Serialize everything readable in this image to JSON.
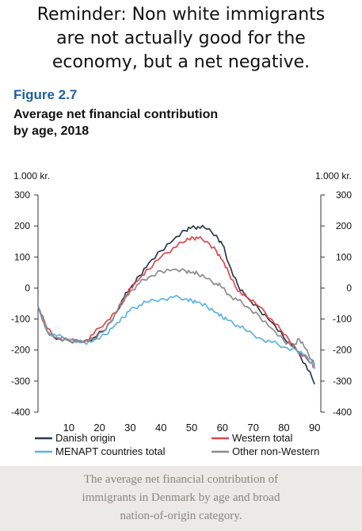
{
  "post": {
    "caption_line1": "Reminder: Non white immigrants",
    "caption_line2": "are not actually good for the",
    "caption_line3": "economy, but a net negative."
  },
  "figure": {
    "label": "Figure 2.7",
    "title_line1": "Average net financial contribution",
    "title_line2": "by age, 2018"
  },
  "footer": {
    "line1": "The average net financial contribution of",
    "line2": "immigrants in Denmark by age and broad",
    "line3": "nation-of-origin category."
  },
  "chart_data": {
    "type": "line",
    "y_unit_left": "1.000 kr.",
    "y_unit_right": "1.000 kr.",
    "ylim": [
      -400,
      300
    ],
    "xlim": [
      0,
      92
    ],
    "yticks": [
      300,
      200,
      100,
      0,
      -100,
      -200,
      -300,
      -400
    ],
    "ytick_labels": [
      "300",
      "200",
      "100",
      "0",
      "-100",
      "-200",
      "-300",
      "-400"
    ],
    "xticks": [
      10,
      20,
      30,
      40,
      50,
      60,
      70,
      80,
      90
    ],
    "xtick_labels": [
      "10",
      "20",
      "30",
      "40",
      "50",
      "60",
      "70",
      "80",
      "90"
    ],
    "grid": false,
    "legend_position": "bottom",
    "series": [
      {
        "name": "Danish origin",
        "color": "#2b3a4a",
        "points": [
          [
            0,
            -60
          ],
          [
            3,
            -140
          ],
          [
            6,
            -165
          ],
          [
            10,
            -170
          ],
          [
            15,
            -175
          ],
          [
            18,
            -160
          ],
          [
            22,
            -135
          ],
          [
            25,
            -85
          ],
          [
            28,
            -30
          ],
          [
            30,
            0
          ],
          [
            33,
            40
          ],
          [
            36,
            80
          ],
          [
            40,
            120
          ],
          [
            44,
            155
          ],
          [
            48,
            185
          ],
          [
            50,
            195
          ],
          [
            52,
            198
          ],
          [
            55,
            190
          ],
          [
            58,
            170
          ],
          [
            60,
            140
          ],
          [
            62,
            80
          ],
          [
            65,
            10
          ],
          [
            68,
            -30
          ],
          [
            72,
            -70
          ],
          [
            76,
            -110
          ],
          [
            80,
            -160
          ],
          [
            84,
            -200
          ],
          [
            87,
            -245
          ],
          [
            90,
            -310
          ]
        ]
      },
      {
        "name": "Western total",
        "color": "#e0484b",
        "points": [
          [
            0,
            -60
          ],
          [
            3,
            -130
          ],
          [
            6,
            -160
          ],
          [
            10,
            -170
          ],
          [
            15,
            -170
          ],
          [
            18,
            -150
          ],
          [
            22,
            -110
          ],
          [
            25,
            -80
          ],
          [
            28,
            -40
          ],
          [
            30,
            0
          ],
          [
            33,
            30
          ],
          [
            36,
            60
          ],
          [
            40,
            100
          ],
          [
            44,
            130
          ],
          [
            48,
            150
          ],
          [
            50,
            165
          ],
          [
            52,
            160
          ],
          [
            55,
            150
          ],
          [
            58,
            120
          ],
          [
            60,
            90
          ],
          [
            62,
            50
          ],
          [
            65,
            -10
          ],
          [
            68,
            -30
          ],
          [
            72,
            -60
          ],
          [
            76,
            -100
          ],
          [
            80,
            -150
          ],
          [
            83,
            -180
          ],
          [
            86,
            -220
          ],
          [
            89,
            -240
          ],
          [
            90,
            -260
          ]
        ]
      },
      {
        "name": "MENAPT countries total",
        "color": "#5ab4e2",
        "points": [
          [
            0,
            -60
          ],
          [
            3,
            -140
          ],
          [
            6,
            -155
          ],
          [
            10,
            -165
          ],
          [
            15,
            -175
          ],
          [
            18,
            -170
          ],
          [
            22,
            -150
          ],
          [
            25,
            -120
          ],
          [
            28,
            -95
          ],
          [
            30,
            -70
          ],
          [
            33,
            -55
          ],
          [
            36,
            -45
          ],
          [
            40,
            -35
          ],
          [
            44,
            -30
          ],
          [
            48,
            -35
          ],
          [
            50,
            -40
          ],
          [
            52,
            -45
          ],
          [
            55,
            -60
          ],
          [
            58,
            -80
          ],
          [
            60,
            -95
          ],
          [
            62,
            -105
          ],
          [
            65,
            -120
          ],
          [
            68,
            -140
          ],
          [
            72,
            -160
          ],
          [
            76,
            -175
          ],
          [
            80,
            -190
          ],
          [
            84,
            -200
          ],
          [
            87,
            -215
          ],
          [
            90,
            -260
          ]
        ]
      },
      {
        "name": "Other non-Western",
        "color": "#8c8c8c",
        "points": [
          [
            0,
            -60
          ],
          [
            3,
            -140
          ],
          [
            6,
            -160
          ],
          [
            10,
            -170
          ],
          [
            15,
            -175
          ],
          [
            18,
            -165
          ],
          [
            22,
            -135
          ],
          [
            25,
            -85
          ],
          [
            28,
            -35
          ],
          [
            30,
            -10
          ],
          [
            33,
            15
          ],
          [
            36,
            35
          ],
          [
            40,
            55
          ],
          [
            44,
            60
          ],
          [
            48,
            55
          ],
          [
            50,
            50
          ],
          [
            52,
            45
          ],
          [
            55,
            30
          ],
          [
            58,
            15
          ],
          [
            60,
            0
          ],
          [
            62,
            -20
          ],
          [
            65,
            -40
          ],
          [
            68,
            -60
          ],
          [
            72,
            -90
          ],
          [
            76,
            -130
          ],
          [
            80,
            -170
          ],
          [
            83,
            -190
          ],
          [
            85,
            -165
          ],
          [
            87,
            -195
          ],
          [
            89,
            -230
          ],
          [
            90,
            -250
          ]
        ]
      }
    ]
  }
}
